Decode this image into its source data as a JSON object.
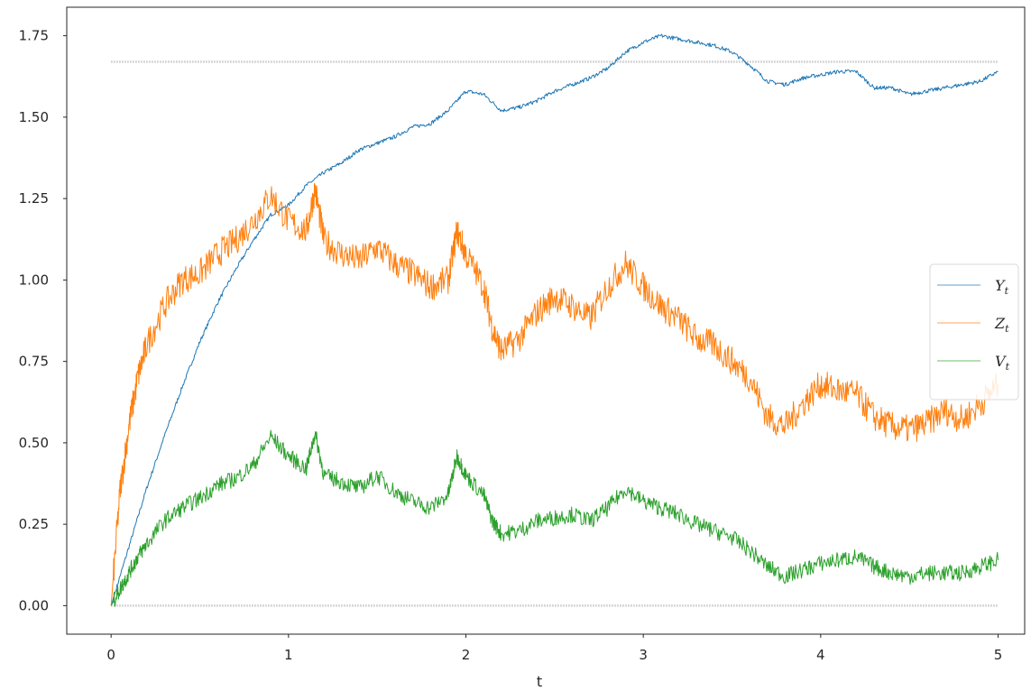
{
  "chart_data": {
    "type": "line",
    "xlabel": "t",
    "ylabel": "",
    "title": "",
    "xlim": [
      -0.25,
      5.15
    ],
    "ylim": [
      -0.0875,
      1.8375
    ],
    "xticks": [
      0,
      1,
      2,
      3,
      4,
      5
    ],
    "xtick_labels": [
      "0",
      "1",
      "2",
      "3",
      "4",
      "5"
    ],
    "yticks": [
      0,
      0.25,
      0.5,
      0.75,
      1.0,
      1.25,
      1.5,
      1.75
    ],
    "ytick_labels": [
      "0.00",
      "0.25",
      "0.50",
      "0.75",
      "1.00",
      "1.25",
      "1.50",
      "1.75"
    ],
    "grid": false,
    "legend_position": "center-right",
    "series": [
      {
        "name": "Y",
        "subscript": "t",
        "color": "#1f77b4",
        "style": "solid",
        "x": [
          0,
          0.1,
          0.2,
          0.3,
          0.4,
          0.5,
          0.6,
          0.7,
          0.8,
          0.9,
          1.0,
          1.1,
          1.2,
          1.3,
          1.4,
          1.5,
          1.6,
          1.7,
          1.8,
          1.9,
          2.0,
          2.1,
          2.2,
          2.3,
          2.4,
          2.5,
          2.6,
          2.7,
          2.8,
          2.9,
          3.0,
          3.1,
          3.2,
          3.3,
          3.4,
          3.5,
          3.6,
          3.7,
          3.8,
          3.9,
          4.0,
          4.1,
          4.2,
          4.3,
          4.4,
          4.5,
          4.6,
          4.7,
          4.8,
          4.9,
          5.0
        ],
        "y": [
          0.0,
          0.18,
          0.36,
          0.52,
          0.67,
          0.81,
          0.93,
          1.03,
          1.12,
          1.2,
          1.23,
          1.29,
          1.33,
          1.36,
          1.4,
          1.42,
          1.44,
          1.47,
          1.48,
          1.52,
          1.58,
          1.57,
          1.52,
          1.53,
          1.55,
          1.58,
          1.6,
          1.62,
          1.65,
          1.7,
          1.73,
          1.75,
          1.74,
          1.73,
          1.72,
          1.7,
          1.66,
          1.61,
          1.6,
          1.62,
          1.63,
          1.64,
          1.64,
          1.59,
          1.59,
          1.57,
          1.58,
          1.59,
          1.6,
          1.61,
          1.64
        ]
      },
      {
        "name": "Z",
        "subscript": "t",
        "color": "#ff7f0e",
        "style": "solid",
        "x": [
          0,
          0.05,
          0.1,
          0.15,
          0.2,
          0.3,
          0.4,
          0.5,
          0.6,
          0.7,
          0.8,
          0.9,
          1.0,
          1.1,
          1.15,
          1.2,
          1.3,
          1.4,
          1.5,
          1.6,
          1.7,
          1.8,
          1.9,
          1.95,
          2.0,
          2.1,
          2.15,
          2.2,
          2.3,
          2.4,
          2.5,
          2.6,
          2.7,
          2.8,
          2.9,
          3.0,
          3.1,
          3.2,
          3.3,
          3.4,
          3.5,
          3.6,
          3.7,
          3.8,
          3.9,
          4.0,
          4.1,
          4.2,
          4.3,
          4.4,
          4.5,
          4.6,
          4.7,
          4.8,
          4.9,
          5.0
        ],
        "y": [
          0.0,
          0.35,
          0.55,
          0.7,
          0.8,
          0.92,
          1.0,
          1.02,
          1.08,
          1.12,
          1.18,
          1.26,
          1.18,
          1.15,
          1.28,
          1.12,
          1.08,
          1.06,
          1.1,
          1.05,
          1.02,
          0.98,
          1.0,
          1.15,
          1.08,
          0.98,
          0.85,
          0.78,
          0.82,
          0.9,
          0.95,
          0.92,
          0.88,
          0.98,
          1.05,
          0.98,
          0.92,
          0.88,
          0.82,
          0.8,
          0.75,
          0.7,
          0.58,
          0.55,
          0.62,
          0.68,
          0.66,
          0.65,
          0.58,
          0.55,
          0.54,
          0.56,
          0.6,
          0.57,
          0.62,
          0.68
        ]
      },
      {
        "name": "V",
        "subscript": "t",
        "color": "#2ca02c",
        "style": "solid",
        "x": [
          0,
          0.05,
          0.1,
          0.15,
          0.2,
          0.3,
          0.4,
          0.5,
          0.6,
          0.7,
          0.8,
          0.9,
          1.0,
          1.1,
          1.15,
          1.2,
          1.3,
          1.4,
          1.5,
          1.6,
          1.7,
          1.8,
          1.9,
          1.95,
          2.0,
          2.1,
          2.15,
          2.2,
          2.3,
          2.4,
          2.5,
          2.6,
          2.7,
          2.8,
          2.9,
          3.0,
          3.1,
          3.2,
          3.3,
          3.4,
          3.5,
          3.6,
          3.7,
          3.8,
          3.9,
          4.0,
          4.1,
          4.2,
          4.3,
          4.4,
          4.5,
          4.6,
          4.7,
          4.8,
          4.9,
          5.0
        ],
        "y": [
          0.0,
          0.05,
          0.1,
          0.15,
          0.19,
          0.26,
          0.3,
          0.33,
          0.37,
          0.39,
          0.43,
          0.52,
          0.46,
          0.42,
          0.53,
          0.4,
          0.38,
          0.36,
          0.4,
          0.35,
          0.32,
          0.3,
          0.34,
          0.46,
          0.4,
          0.34,
          0.26,
          0.22,
          0.23,
          0.26,
          0.27,
          0.28,
          0.26,
          0.3,
          0.36,
          0.32,
          0.3,
          0.28,
          0.25,
          0.23,
          0.21,
          0.17,
          0.12,
          0.09,
          0.11,
          0.13,
          0.14,
          0.15,
          0.12,
          0.1,
          0.09,
          0.1,
          0.1,
          0.1,
          0.12,
          0.14
        ]
      }
    ],
    "reference_lines": [
      {
        "y": 1.67,
        "x_start": 0,
        "x_end": 5,
        "color": "#c8c8c8",
        "style": "dotted"
      },
      {
        "y": 0.0,
        "x_start": 0,
        "x_end": 5,
        "color": "#c8c8c8",
        "style": "dotted"
      }
    ]
  }
}
